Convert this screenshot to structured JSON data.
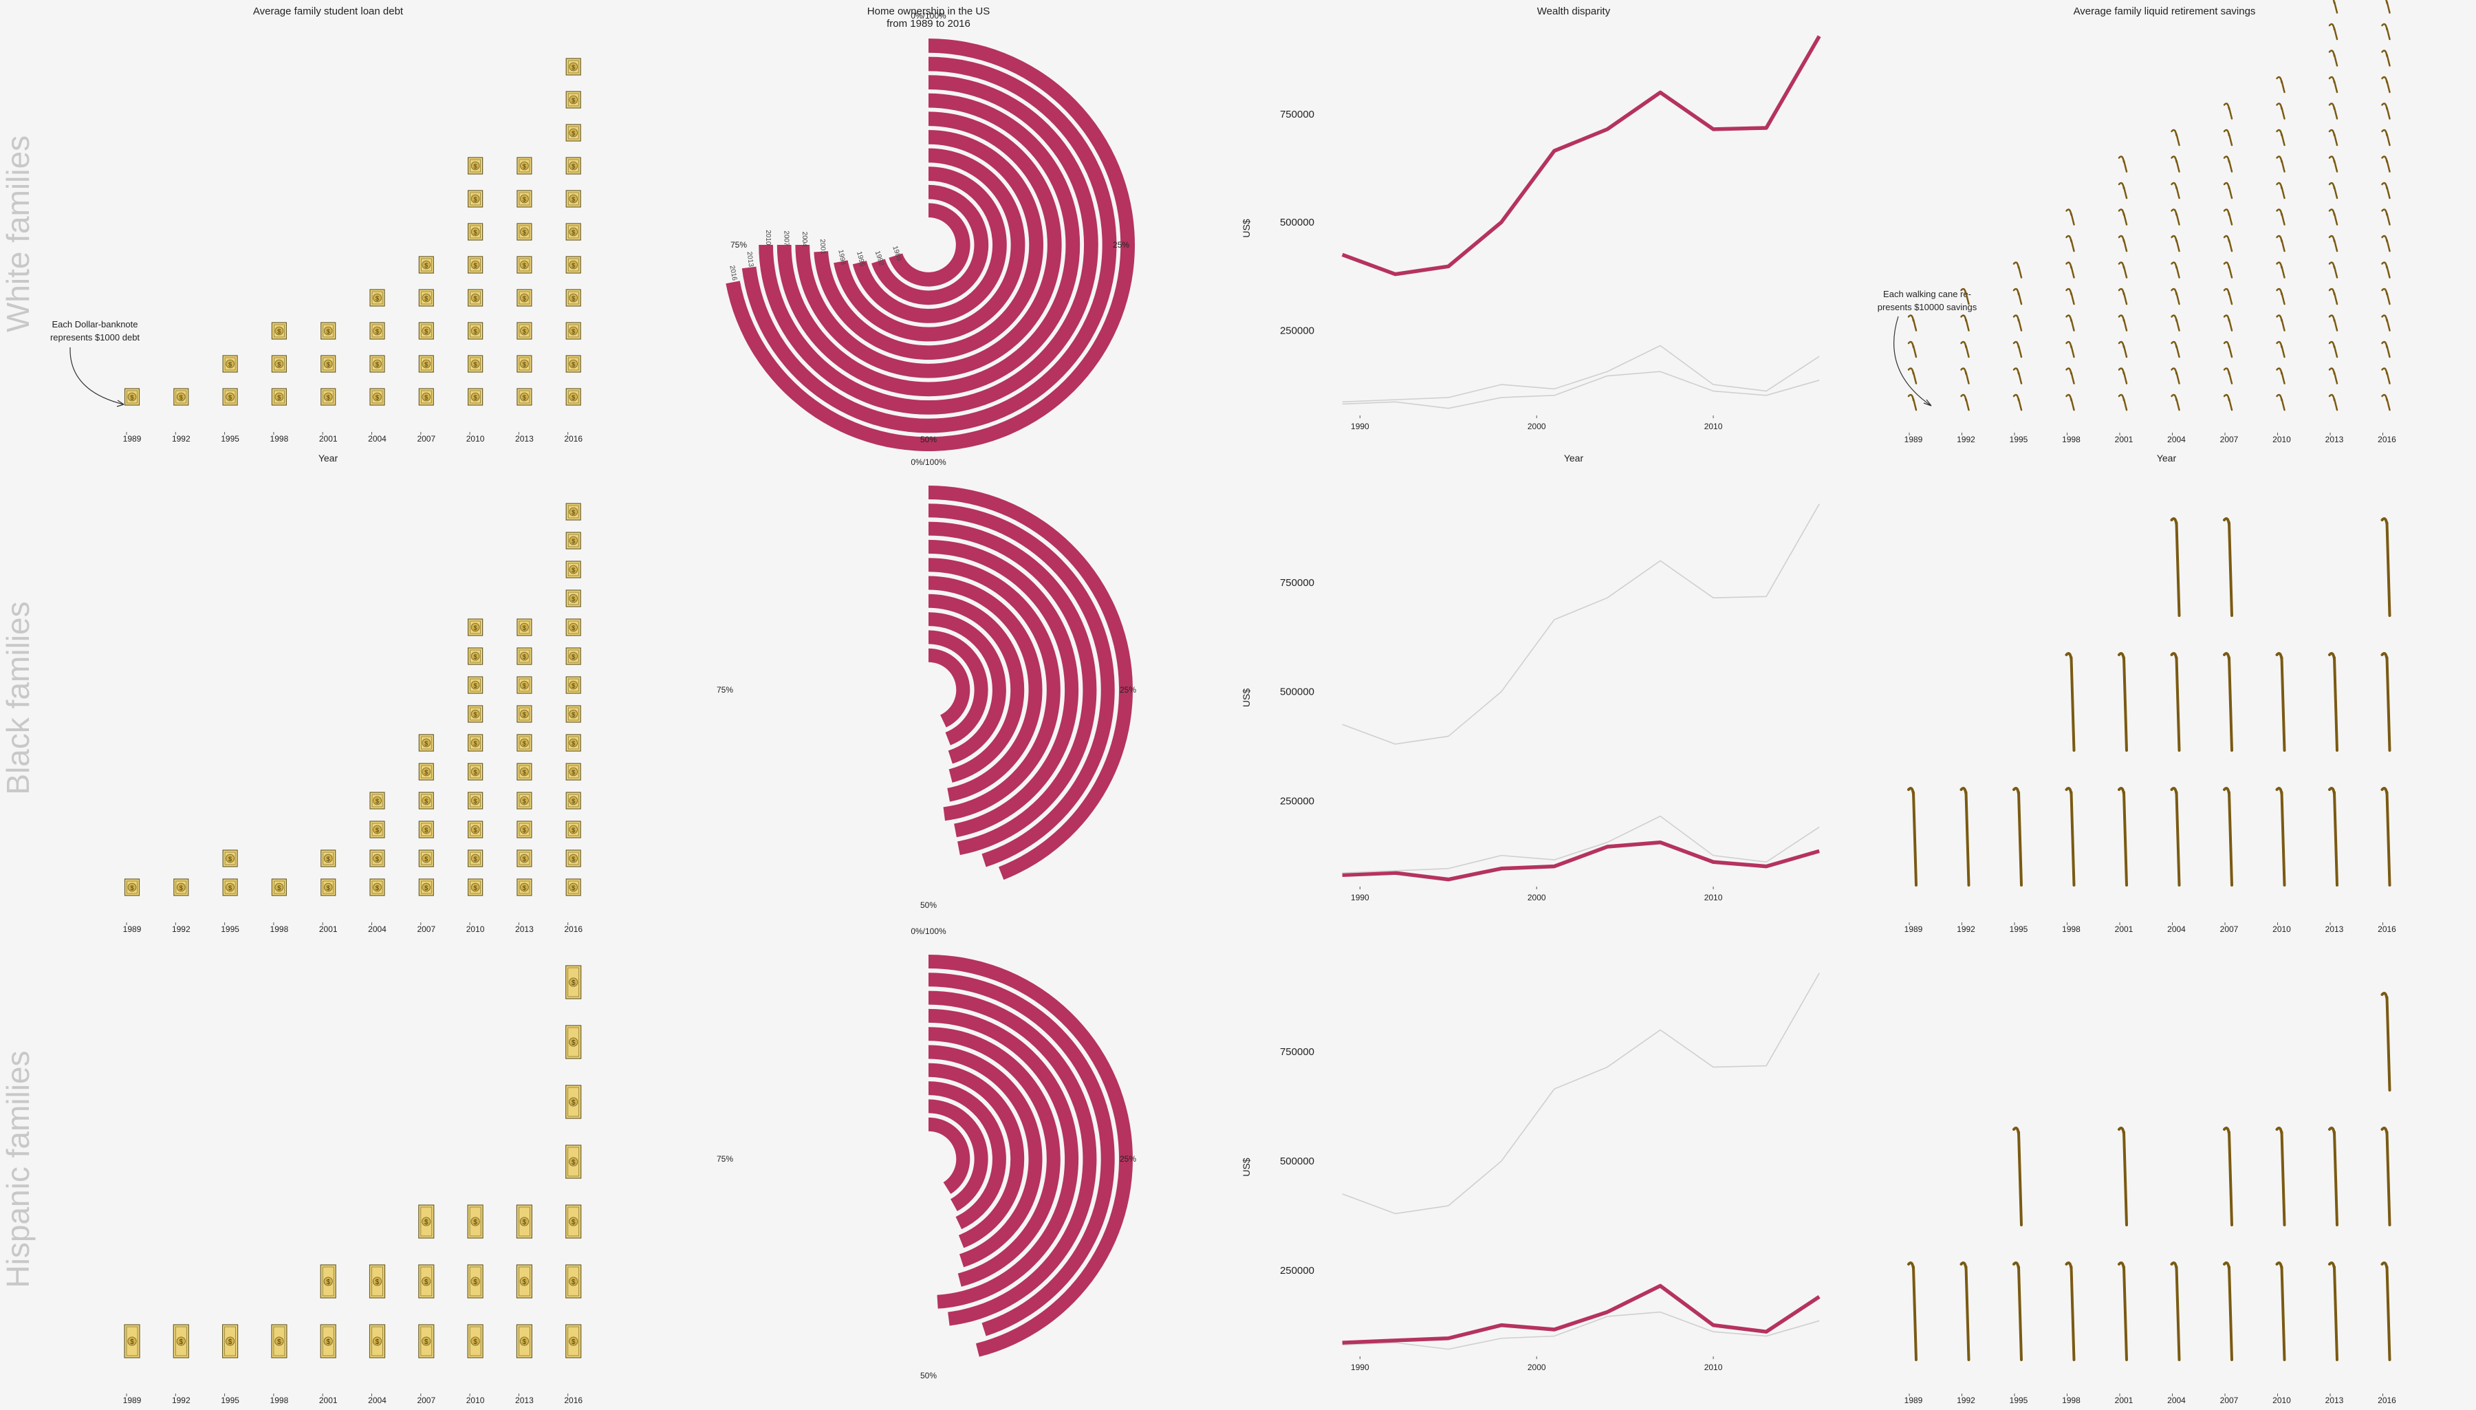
{
  "row_labels": [
    "White families",
    "Black families",
    "Hispanic families"
  ],
  "colors": {
    "accent": "#b5335e",
    "background": "#f5f5f5",
    "gray_line": "#cfcfcf",
    "text": "#222222",
    "row_label": "#c8c8c8",
    "bill": "#ecd37a",
    "cane": "#7a5a12"
  },
  "chart_data": [
    {
      "type": "bar",
      "title": "Average family student loan debt",
      "xlabel": "Year",
      "encoding": "pictogram (dollar-banknote icons)",
      "annotation": "Each Dollar-banknote represents $1000 debt",
      "categories": [
        "1989",
        "1992",
        "1995",
        "1998",
        "2001",
        "2004",
        "2007",
        "2010",
        "2013",
        "2016"
      ],
      "series": [
        {
          "name": "White families",
          "values": [
            1,
            1,
            2,
            3,
            3,
            4,
            5,
            8,
            8,
            11
          ]
        },
        {
          "name": "Black families",
          "values": [
            1,
            1,
            2,
            1,
            2,
            4,
            6,
            10,
            10,
            14
          ]
        },
        {
          "name": "Hispanic families",
          "values": [
            1,
            1,
            1,
            1,
            2,
            2,
            3,
            3,
            3,
            7
          ]
        }
      ]
    },
    {
      "type": "bar",
      "title": "Home ownership in the US",
      "subtitle": "from 1989 to 2016",
      "encoding": "radial bars, one ring per survey year",
      "categories": [
        "1989",
        "1992",
        "1995",
        "1998",
        "2001",
        "2004",
        "2007",
        "2010",
        "2013",
        "2016"
      ],
      "angle_labels": [
        "0%/100%",
        "25%",
        "50%",
        "75%"
      ],
      "series": [
        {
          "name": "White families",
          "values": [
            0.7,
            0.7,
            0.71,
            0.72,
            0.74,
            0.75,
            0.75,
            0.75,
            0.73,
            0.72
          ]
        },
        {
          "name": "Black families",
          "values": [
            0.43,
            0.44,
            0.45,
            0.46,
            0.47,
            0.48,
            0.47,
            0.47,
            0.45,
            0.44
          ]
        },
        {
          "name": "Hispanic families",
          "values": [
            0.41,
            0.42,
            0.43,
            0.44,
            0.45,
            0.46,
            0.49,
            0.48,
            0.45,
            0.46
          ]
        }
      ]
    },
    {
      "type": "line",
      "title": "Wealth disparity",
      "xlabel": "Year",
      "ylabel": "US$",
      "x": [
        1989,
        1992,
        1995,
        1998,
        2001,
        2004,
        2007,
        2010,
        2013,
        2016
      ],
      "xticks": [
        "1990",
        "2000",
        "2010"
      ],
      "yticks": [
        "250000",
        "500000",
        "750000"
      ],
      "xlim": [
        1988,
        2016.5
      ],
      "ylim": [
        60000,
        950000
      ],
      "series": [
        {
          "name": "White families",
          "values": [
            425000,
            380000,
            398000,
            500000,
            665000,
            715000,
            800000,
            715000,
            718000,
            930000
          ]
        },
        {
          "name": "Black families",
          "values": [
            80000,
            85000,
            70000,
            95000,
            100000,
            145000,
            155000,
            110000,
            100000,
            135000
          ]
        },
        {
          "name": "Hispanic families",
          "values": [
            85000,
            90000,
            95000,
            125000,
            115000,
            155000,
            215000,
            125000,
            110000,
            190000
          ]
        }
      ]
    },
    {
      "type": "bar",
      "title": "Average family liquid retirement savings",
      "xlabel": "Year",
      "encoding": "pictogram (walking-cane icons)",
      "annotation": "Each walking cane re-presents $10000 savings",
      "categories": [
        "1989",
        "1992",
        "1995",
        "1998",
        "2001",
        "2004",
        "2007",
        "2010",
        "2013",
        "2016"
      ],
      "series": [
        {
          "name": "White families",
          "values": [
            4,
            5,
            6,
            8,
            10,
            11,
            12,
            13,
            16,
            19
          ]
        },
        {
          "name": "Black families",
          "values": [
            1,
            1,
            1,
            2,
            2,
            3,
            3,
            2,
            2,
            3
          ]
        },
        {
          "name": "Hispanic families",
          "values": [
            1,
            1,
            2,
            1,
            2,
            1,
            2,
            2,
            2,
            3
          ]
        }
      ]
    }
  ]
}
